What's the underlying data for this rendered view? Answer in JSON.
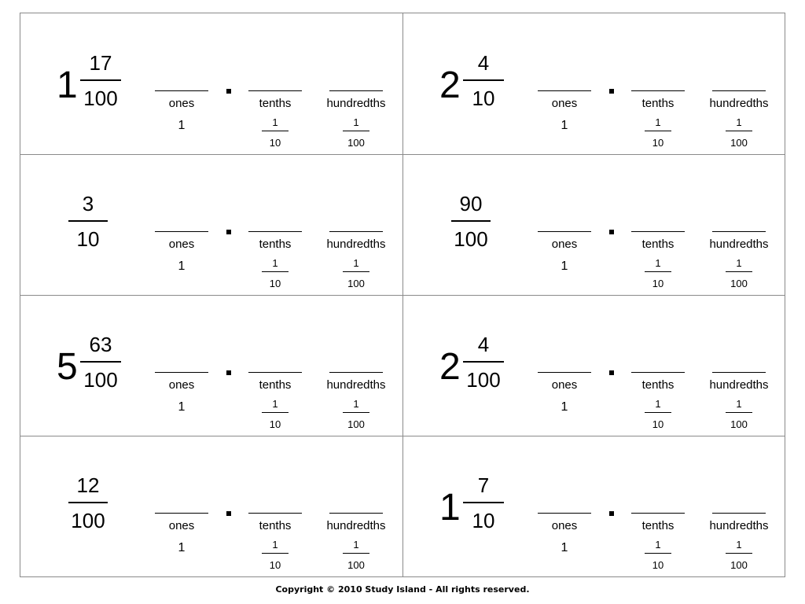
{
  "place_labels": {
    "ones": "ones",
    "tenths": "tenths",
    "hundredths": "hundredths",
    "one_value": "1",
    "tenth_num": "1",
    "tenth_den": "10",
    "hundredth_num": "1",
    "hundredth_den": "100"
  },
  "cards": [
    {
      "whole": "1",
      "numerator": "17",
      "denominator": "100"
    },
    {
      "whole": "2",
      "numerator": "4",
      "denominator": "10"
    },
    {
      "whole": "",
      "numerator": "3",
      "denominator": "10"
    },
    {
      "whole": "",
      "numerator": "90",
      "denominator": "100"
    },
    {
      "whole": "5",
      "numerator": "63",
      "denominator": "100"
    },
    {
      "whole": "2",
      "numerator": "4",
      "denominator": "100"
    },
    {
      "whole": "",
      "numerator": "12",
      "denominator": "100"
    },
    {
      "whole": "1",
      "numerator": "7",
      "denominator": "10"
    }
  ],
  "footer": "Copyright © 2010 Study Island - All rights reserved."
}
